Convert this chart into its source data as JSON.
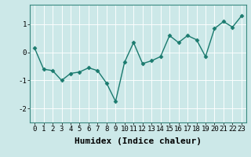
{
  "x": [
    0,
    1,
    2,
    3,
    4,
    5,
    6,
    7,
    8,
    9,
    10,
    11,
    12,
    13,
    14,
    15,
    16,
    17,
    18,
    19,
    20,
    21,
    22,
    23
  ],
  "y": [
    0.15,
    -0.6,
    -0.65,
    -1.0,
    -0.75,
    -0.7,
    -0.55,
    -0.65,
    -1.1,
    -1.75,
    -0.35,
    0.35,
    -0.4,
    -0.3,
    -0.15,
    0.6,
    0.35,
    0.6,
    0.45,
    -0.15,
    0.85,
    1.1,
    0.9,
    1.3
  ],
  "line_color": "#1a7a6e",
  "marker": "D",
  "marker_size": 2.5,
  "line_width": 1.0,
  "bg_color": "#cce8e8",
  "grid_color": "#b0d8d8",
  "xlabel": "Humidex (Indice chaleur)",
  "xlabel_fontsize": 8,
  "xlabel_fontweight": "bold",
  "ylabel_ticks": [
    -2,
    -1,
    0,
    1
  ],
  "xlim": [
    -0.5,
    23.5
  ],
  "ylim": [
    -2.5,
    1.7
  ],
  "xtick_labels": [
    "0",
    "1",
    "2",
    "3",
    "4",
    "5",
    "6",
    "7",
    "8",
    "9",
    "10",
    "11",
    "12",
    "13",
    "14",
    "15",
    "16",
    "17",
    "18",
    "19",
    "20",
    "21",
    "22",
    "23"
  ],
  "tick_fontsize": 6.5,
  "spine_color": "#3a8a80"
}
